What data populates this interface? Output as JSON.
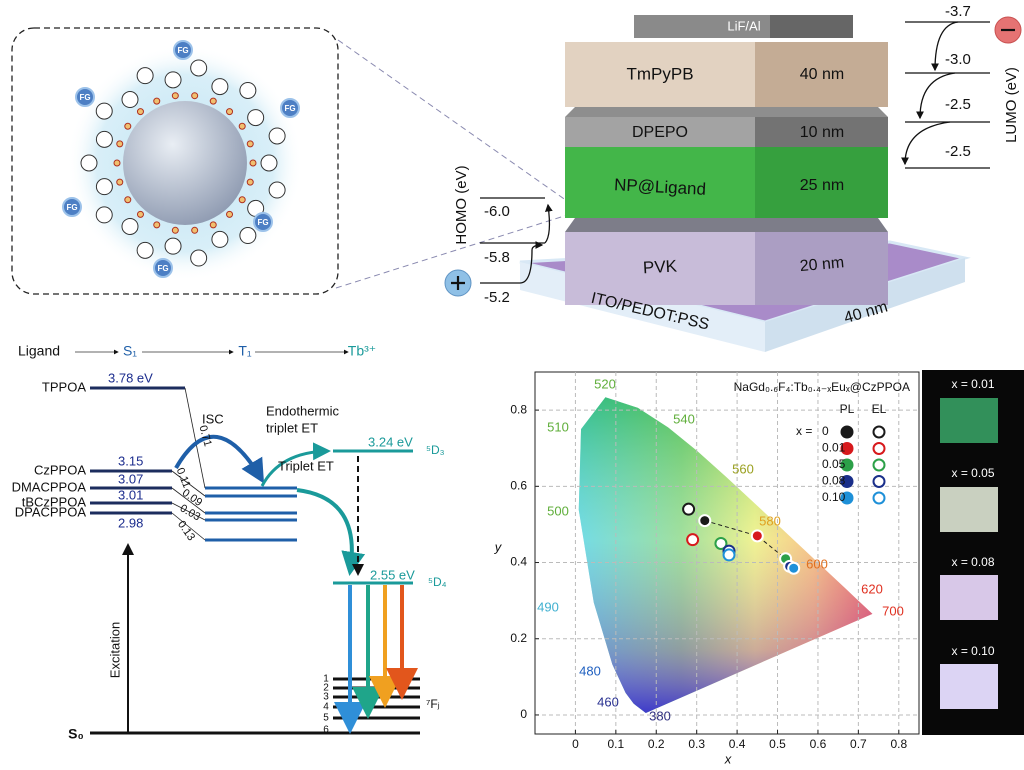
{
  "nanoparticle": {
    "functional_group": "FG"
  },
  "device": {
    "layers": [
      {
        "name": "LiF/Al"
      },
      {
        "name": "TmPyPB",
        "thickness": "40 nm"
      },
      {
        "name": "DPEPO",
        "thickness": "10 nm"
      },
      {
        "name": "NP@Ligand",
        "thickness": "25 nm"
      },
      {
        "name": "PVK",
        "thickness": "20 nm"
      },
      {
        "name": "ITO/PEDOT:PSS",
        "thickness": "40 nm"
      }
    ],
    "homo": {
      "label": "HOMO (eV)",
      "levels": [
        "-6.0",
        "-5.8",
        "-5.2"
      ]
    },
    "lumo": {
      "label": "LUMO (eV)",
      "levels": [
        "-3.7",
        "-3.0",
        "-2.5",
        "-2.5"
      ]
    }
  },
  "energy_diagram": {
    "header": {
      "ligand": "Ligand",
      "s1": "S₁",
      "t1": "T₁",
      "tb": "Tb³⁺"
    },
    "ligands": [
      {
        "name": "TPPOA",
        "s1": "3.78 eV"
      },
      {
        "name": "CzPPOA",
        "s1": "3.15"
      },
      {
        "name": "DMACPPOA",
        "s1": "3.07"
      },
      {
        "name": "tBCzPPOA",
        "s1": "3.01"
      },
      {
        "name": "DPACPPOA",
        "s1": "2.98"
      }
    ],
    "transitions": {
      "isc": "ISC",
      "endothermic": [
        "Endothermic",
        "triplet ET"
      ],
      "triplet_et": "Triplet ET",
      "gaps": [
        "0.71",
        "0.11",
        "0.09",
        "0.03",
        "0.13"
      ]
    },
    "tb_levels": {
      "d3_energy": "3.24 eV",
      "d3": "⁵D₃",
      "d4_energy": "2.55 eV",
      "d4": "⁵D₄",
      "f": "⁷Fⱼ",
      "f_j": [
        "1",
        "2",
        "3",
        "4",
        "5",
        "6"
      ]
    },
    "excitation": "Excitation",
    "ground": "S₀"
  },
  "cie": {
    "title": "NaGd₀.₆F₄:Tb₀.₄₋ₓEuₓ@CzPPOA",
    "xlabel": "x",
    "ylabel": "y",
    "xlim": [
      -0.1,
      0.85
    ],
    "ylim": [
      -0.05,
      0.9
    ],
    "xticks": [
      0,
      0.1,
      0.2,
      0.3,
      0.4,
      0.5,
      0.6,
      0.7,
      0.8
    ],
    "yticks": [
      0,
      0.2,
      0.4,
      0.6,
      0.8
    ],
    "grid": true,
    "wavelengths": [
      520,
      540,
      510,
      560,
      500,
      580,
      600,
      620,
      700,
      490,
      480,
      460,
      380
    ],
    "legend": {
      "x_label": "x =",
      "labels": [
        "0",
        "0.01",
        "0.05",
        "0.08",
        "0.10"
      ],
      "colors": [
        "#1a1a1a",
        "#d7191c",
        "#2ca048",
        "#1a2f8a",
        "#1e90d8"
      ]
    },
    "series": [
      {
        "name": "PL",
        "filled": true,
        "x": [
          0.32,
          0.45,
          0.52,
          0.53,
          0.54
        ],
        "y": [
          0.51,
          0.47,
          0.41,
          0.39,
          0.385
        ]
      },
      {
        "name": "EL",
        "filled": false,
        "x": [
          0.28,
          0.29,
          0.36,
          0.38,
          0.38
        ],
        "y": [
          0.54,
          0.46,
          0.45,
          0.43,
          0.42
        ]
      }
    ]
  },
  "photos": [
    "x = 0.01",
    "x = 0.05",
    "x = 0.08",
    "x = 0.10"
  ]
}
